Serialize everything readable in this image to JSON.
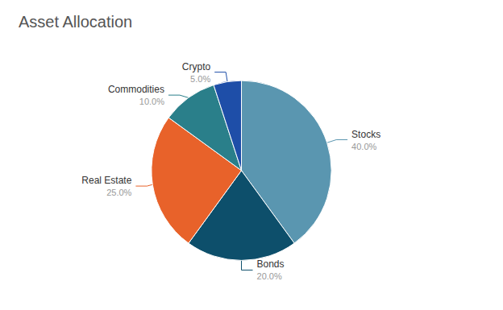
{
  "chart_data": {
    "type": "pie",
    "title": "Asset Allocation",
    "categories": [
      "Stocks",
      "Bonds",
      "Real Estate",
      "Commodities",
      "Crypto"
    ],
    "values": [
      40.0,
      20.0,
      25.0,
      10.0,
      5.0
    ],
    "value_labels": [
      "40.0%",
      "20.0%",
      "25.0%",
      "10.0%",
      "5.0%"
    ],
    "colors": [
      "#5a96b0",
      "#0d4f6b",
      "#e8622a",
      "#2a7f8a",
      "#1e4ea8"
    ],
    "data_labels": true
  }
}
